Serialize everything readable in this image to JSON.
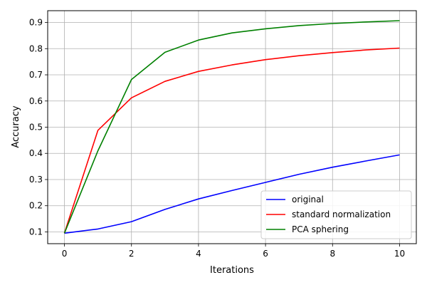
{
  "chart_data": {
    "type": "line",
    "title": "",
    "xlabel": "Iterations",
    "ylabel": "Accuracy",
    "xlim": [
      -0.5,
      10.5
    ],
    "ylim": [
      0.055,
      0.945
    ],
    "xticks": [
      0,
      2,
      4,
      6,
      8,
      10
    ],
    "yticks": [
      0.1,
      0.2,
      0.3,
      0.4,
      0.5,
      0.6,
      0.7,
      0.8,
      0.9
    ],
    "xtick_labels": [
      "0",
      "2",
      "4",
      "6",
      "8",
      "10"
    ],
    "ytick_labels": [
      "0.1",
      "0.2",
      "0.3",
      "0.4",
      "0.5",
      "0.6",
      "0.7",
      "0.8",
      "0.9"
    ],
    "grid": true,
    "legend_position": "lower-right",
    "x": [
      0,
      1,
      2,
      3,
      4,
      5,
      6,
      7,
      8,
      9,
      10
    ],
    "series": [
      {
        "name": "original",
        "color": "#0000ff",
        "values": [
          0.095,
          0.111,
          0.139,
          0.186,
          0.226,
          0.258,
          0.289,
          0.32,
          0.347,
          0.371,
          0.394
        ]
      },
      {
        "name": "standard normalization",
        "color": "#ff0000",
        "values": [
          0.095,
          0.488,
          0.612,
          0.675,
          0.713,
          0.738,
          0.758,
          0.773,
          0.785,
          0.795,
          0.802
        ]
      },
      {
        "name": "PCA sphering",
        "color": "#008000",
        "values": [
          0.095,
          0.41,
          0.682,
          0.786,
          0.833,
          0.86,
          0.876,
          0.888,
          0.896,
          0.902,
          0.907
        ]
      }
    ]
  }
}
